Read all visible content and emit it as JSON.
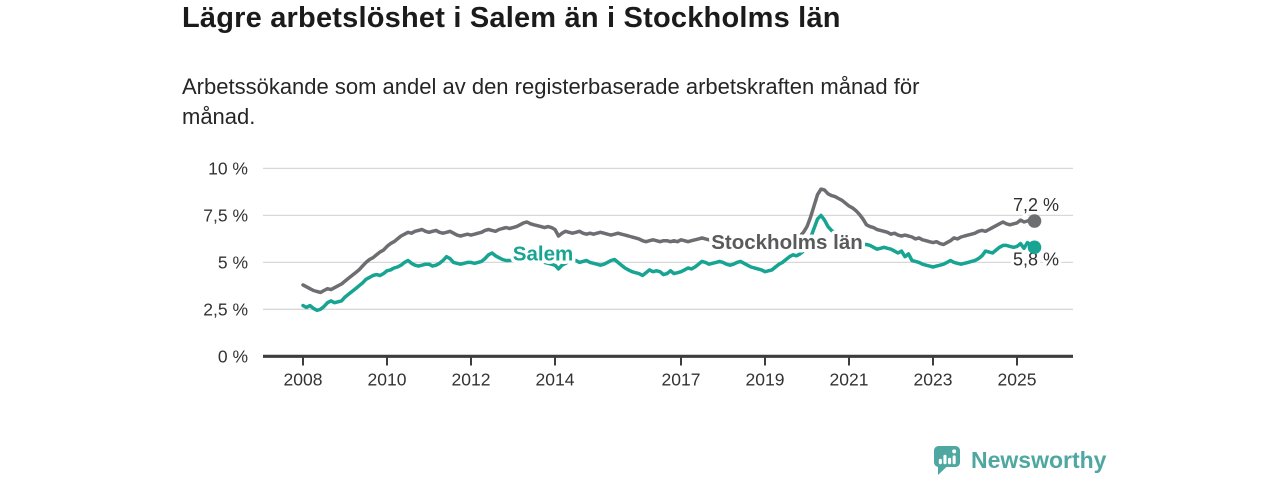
{
  "header": {
    "title": "Lägre arbetslöshet i Salem än i Stockholms län",
    "subtitle_lines": [
      "Arbetssökande som andel av den registerbaserade arbetskraften månad för",
      "månad."
    ]
  },
  "footer": {
    "brand": "Newsworthy",
    "brand_color": "#4ea7a1"
  },
  "chart_data": {
    "type": "line",
    "title": "Lägre arbetslöshet i Salem än i Stockholms län",
    "subtitle": "Arbetssökande som andel av den registerbaserade arbetskraften månad för månad.",
    "unit": "%",
    "frequency": "monthly",
    "x_start": "2008-01",
    "x_end": "2025-06",
    "ylim": [
      0,
      10
    ],
    "grid": "horizontal",
    "legend_position": "inline-labels",
    "colors": {
      "grid": "#d8d8d8",
      "axis": "#3d3d3d",
      "tick_text": "#333333",
      "end_label_text": "#303030"
    },
    "y_ticks": [
      {
        "value": 10,
        "label": "10 %"
      },
      {
        "value": 7.5,
        "label": "7,5 %"
      },
      {
        "value": 5,
        "label": "5 %"
      },
      {
        "value": 2.5,
        "label": "2,5 %"
      },
      {
        "value": 0,
        "label": "0 %"
      }
    ],
    "x_ticks": [
      {
        "year": 2008,
        "label": "2008"
      },
      {
        "year": 2010,
        "label": "2010"
      },
      {
        "year": 2012,
        "label": "2012"
      },
      {
        "year": 2014,
        "label": "2014"
      },
      {
        "year": 2017,
        "label": "2017"
      },
      {
        "year": 2019,
        "label": "2019"
      },
      {
        "year": 2021,
        "label": "2021"
      },
      {
        "year": 2023,
        "label": "2023"
      },
      {
        "year": 2025,
        "label": "2025"
      }
    ],
    "series": [
      {
        "name": "Stockholms län",
        "color": "#6d6e71",
        "label_color": "#595a5c",
        "end_value": 7.2,
        "end_label": "7,2 %",
        "values": [
          3.8,
          3.7,
          3.6,
          3.5,
          3.45,
          3.4,
          3.5,
          3.6,
          3.55,
          3.65,
          3.75,
          3.85,
          4.0,
          4.15,
          4.3,
          4.45,
          4.6,
          4.8,
          5.0,
          5.15,
          5.25,
          5.4,
          5.55,
          5.65,
          5.85,
          6.0,
          6.1,
          6.25,
          6.4,
          6.5,
          6.6,
          6.55,
          6.65,
          6.7,
          6.75,
          6.65,
          6.6,
          6.65,
          6.7,
          6.6,
          6.55,
          6.6,
          6.65,
          6.55,
          6.45,
          6.4,
          6.45,
          6.5,
          6.45,
          6.5,
          6.55,
          6.6,
          6.7,
          6.75,
          6.7,
          6.65,
          6.75,
          6.8,
          6.85,
          6.8,
          6.85,
          6.9,
          7.0,
          7.1,
          7.15,
          7.05,
          7.0,
          6.95,
          6.9,
          6.85,
          6.9,
          6.85,
          6.75,
          6.4,
          6.55,
          6.65,
          6.6,
          6.55,
          6.6,
          6.65,
          6.55,
          6.5,
          6.55,
          6.5,
          6.55,
          6.6,
          6.55,
          6.5,
          6.45,
          6.5,
          6.55,
          6.5,
          6.45,
          6.4,
          6.35,
          6.3,
          6.25,
          6.15,
          6.1,
          6.15,
          6.2,
          6.15,
          6.1,
          6.15,
          6.15,
          6.1,
          6.15,
          6.1,
          6.2,
          6.15,
          6.1,
          6.15,
          6.2,
          6.25,
          6.3,
          6.25,
          6.2,
          6.2,
          6.15,
          6.2,
          6.25,
          6.2,
          6.15,
          6.1,
          6.15,
          6.1,
          6.15,
          6.2,
          6.15,
          6.1,
          6.15,
          6.2,
          6.25,
          6.2,
          6.25,
          6.2,
          6.25,
          6.3,
          6.3,
          6.35,
          6.3,
          6.35,
          6.4,
          6.6,
          6.9,
          7.4,
          8.0,
          8.6,
          8.9,
          8.85,
          8.65,
          8.55,
          8.5,
          8.4,
          8.3,
          8.15,
          8.0,
          7.9,
          7.75,
          7.55,
          7.3,
          7.0,
          6.9,
          6.85,
          6.75,
          6.7,
          6.65,
          6.6,
          6.5,
          6.55,
          6.45,
          6.4,
          6.45,
          6.4,
          6.35,
          6.25,
          6.3,
          6.2,
          6.15,
          6.1,
          6.05,
          6.1,
          6.0,
          5.95,
          6.05,
          6.15,
          6.3,
          6.25,
          6.35,
          6.4,
          6.45,
          6.5,
          6.55,
          6.65,
          6.7,
          6.65,
          6.75,
          6.85,
          6.95,
          7.05,
          7.15,
          7.05,
          7.0,
          7.05,
          7.1,
          7.25,
          7.15,
          7.2,
          7.3,
          7.2
        ]
      },
      {
        "name": "Salem",
        "color": "#17a493",
        "label_color": "#17a493",
        "end_value": 5.8,
        "end_label": "5,8 %",
        "values": [
          2.7,
          2.6,
          2.7,
          2.55,
          2.45,
          2.5,
          2.65,
          2.85,
          2.95,
          2.85,
          2.9,
          2.95,
          3.15,
          3.3,
          3.45,
          3.6,
          3.75,
          3.9,
          4.1,
          4.2,
          4.3,
          4.35,
          4.3,
          4.4,
          4.55,
          4.6,
          4.7,
          4.75,
          4.85,
          5.0,
          5.1,
          4.95,
          4.85,
          4.8,
          4.85,
          4.9,
          4.9,
          4.8,
          4.85,
          4.95,
          5.1,
          5.3,
          5.2,
          5.0,
          4.95,
          4.9,
          4.95,
          5.0,
          5.0,
          4.95,
          5.0,
          5.05,
          5.2,
          5.4,
          5.5,
          5.35,
          5.25,
          5.15,
          5.1,
          5.1,
          5.15,
          5.2,
          5.25,
          5.2,
          5.3,
          5.35,
          5.3,
          5.2,
          5.1,
          5.0,
          4.95,
          4.9,
          4.85,
          4.65,
          4.85,
          4.95,
          5.05,
          5.15,
          5.1,
          5.0,
          5.05,
          5.1,
          5.0,
          4.95,
          4.9,
          4.85,
          4.9,
          5.0,
          5.1,
          5.15,
          5.0,
          4.85,
          4.7,
          4.6,
          4.5,
          4.45,
          4.4,
          4.3,
          4.45,
          4.6,
          4.5,
          4.55,
          4.5,
          4.35,
          4.4,
          4.55,
          4.4,
          4.45,
          4.5,
          4.6,
          4.7,
          4.65,
          4.75,
          4.9,
          5.05,
          5.0,
          4.9,
          4.95,
          5.0,
          5.05,
          5.0,
          4.9,
          4.85,
          4.9,
          5.0,
          5.05,
          4.95,
          4.85,
          4.75,
          4.7,
          4.65,
          4.6,
          4.5,
          4.55,
          4.6,
          4.75,
          4.9,
          5.0,
          5.15,
          5.3,
          5.4,
          5.35,
          5.45,
          5.6,
          5.9,
          6.3,
          6.8,
          7.3,
          7.5,
          7.25,
          6.9,
          6.7,
          6.55,
          6.45,
          6.35,
          6.25,
          6.2,
          6.1,
          6.05,
          6.0,
          5.95,
          5.95,
          5.9,
          5.8,
          5.7,
          5.75,
          5.8,
          5.75,
          5.7,
          5.6,
          5.5,
          5.6,
          5.3,
          5.45,
          5.1,
          5.05,
          5.0,
          4.9,
          4.85,
          4.8,
          4.75,
          4.8,
          4.85,
          4.9,
          5.0,
          5.1,
          5.0,
          4.95,
          4.9,
          4.95,
          5.0,
          5.05,
          5.1,
          5.2,
          5.35,
          5.6,
          5.55,
          5.5,
          5.65,
          5.8,
          5.9,
          5.9,
          5.85,
          5.8,
          5.85,
          6.0,
          5.75,
          6.05,
          5.9,
          5.8
        ]
      }
    ]
  }
}
